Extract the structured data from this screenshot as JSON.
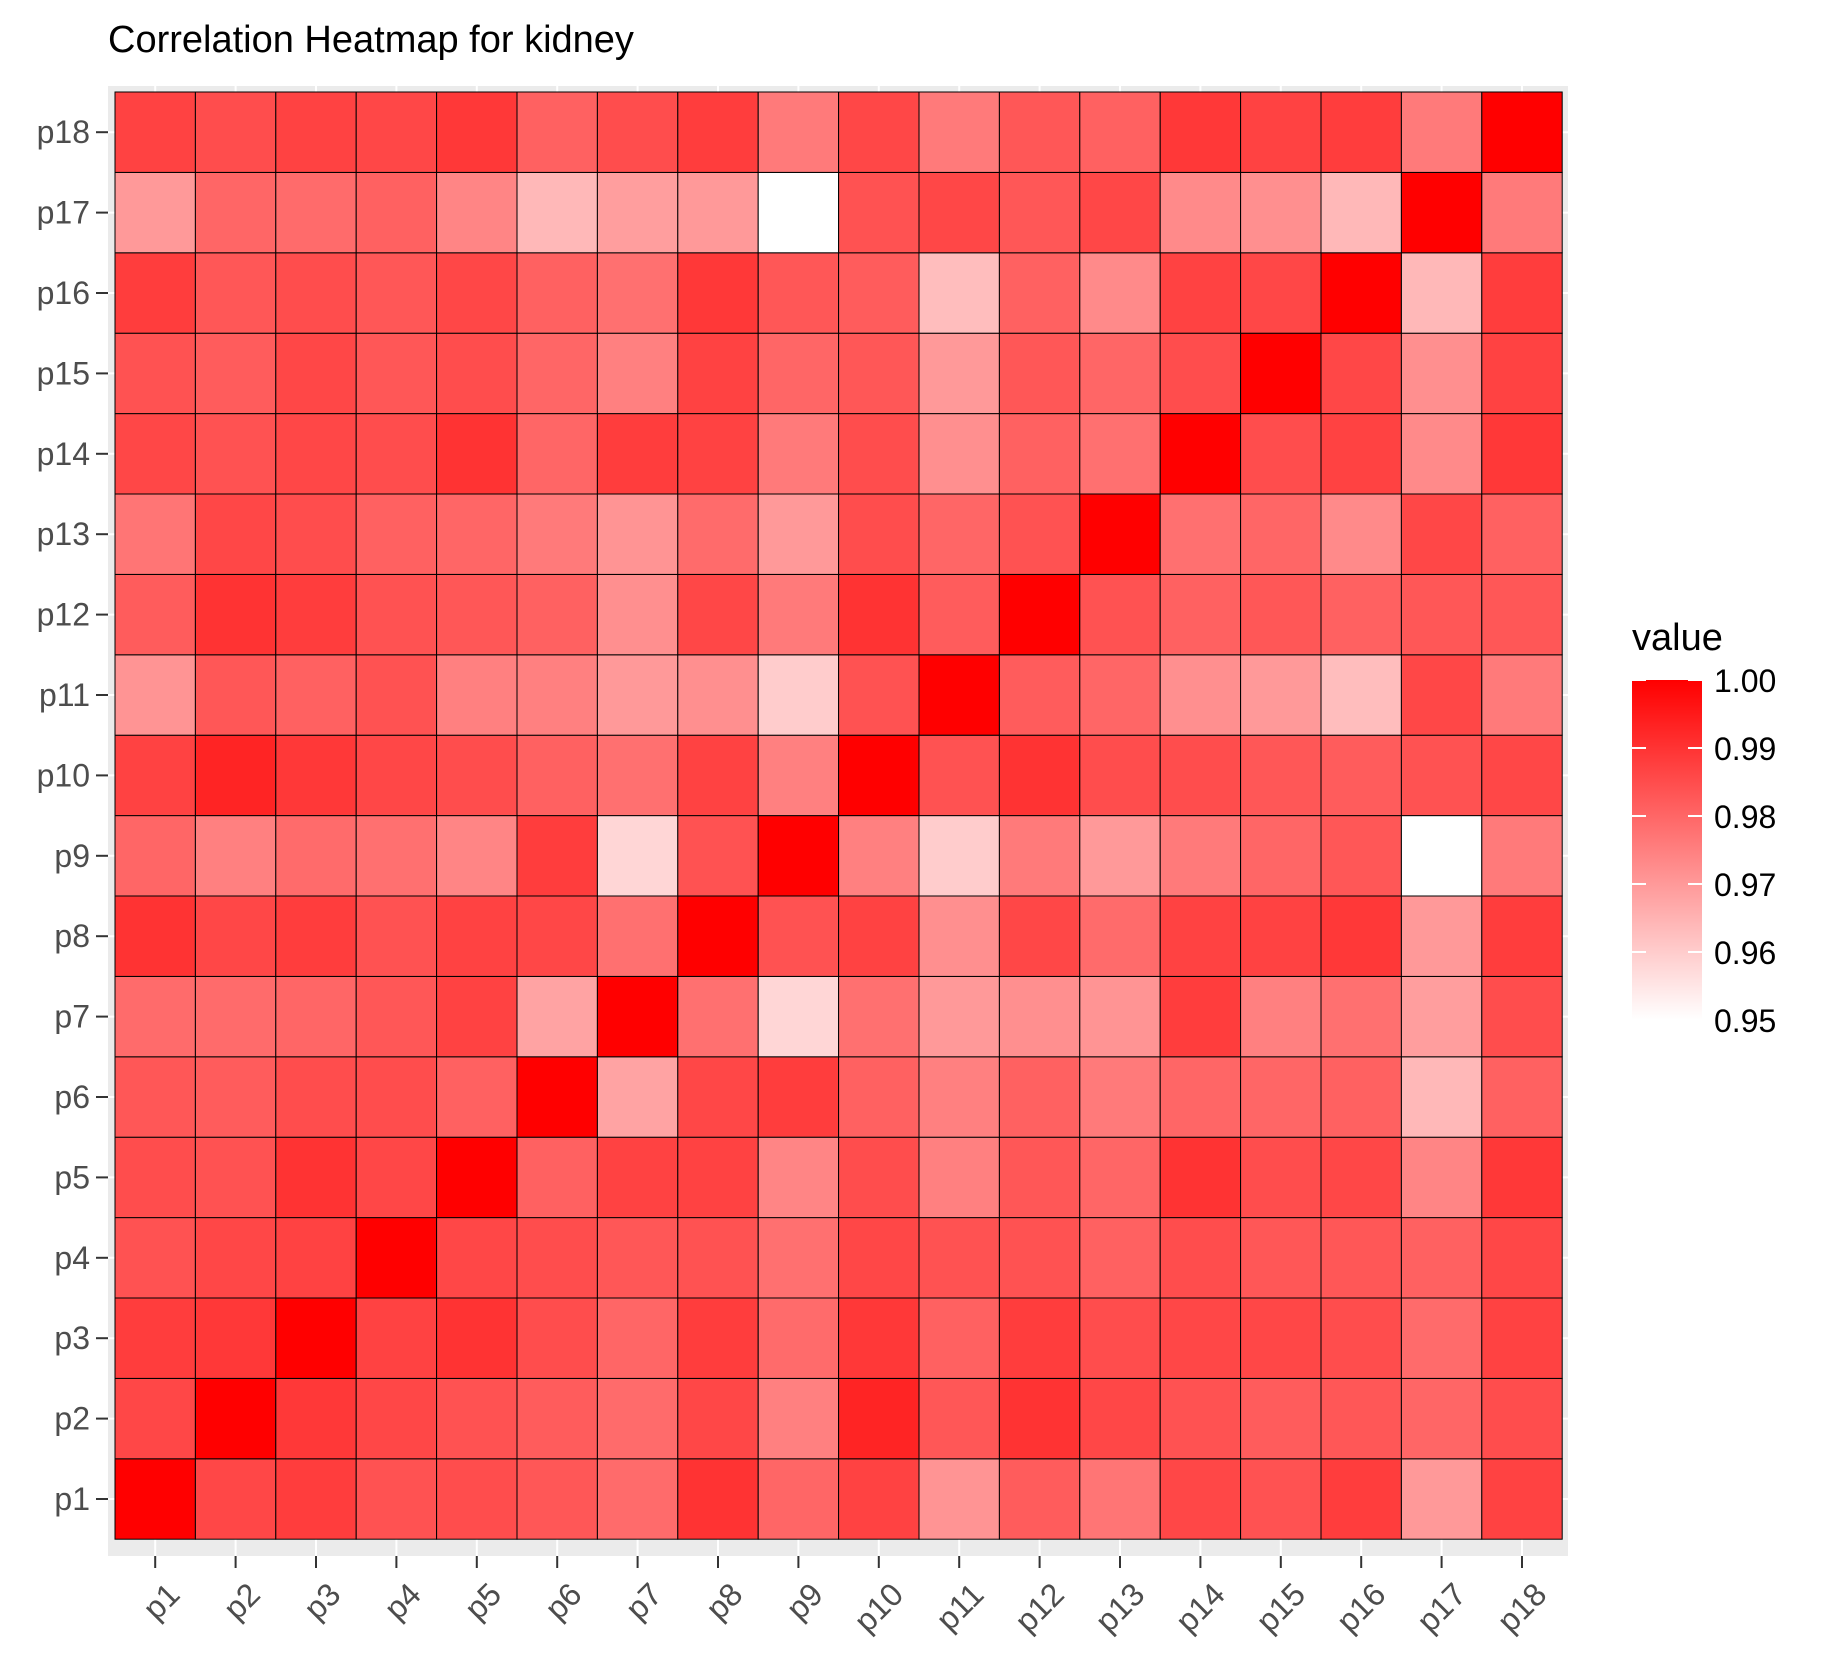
{
  "chart_data": {
    "type": "heatmap",
    "title": "Correlation Heatmap for kidney",
    "xlabel": "",
    "ylabel": "",
    "x_categories": [
      "p1",
      "p2",
      "p3",
      "p4",
      "p5",
      "p6",
      "p7",
      "p8",
      "p9",
      "p10",
      "p11",
      "p12",
      "p13",
      "p14",
      "p15",
      "p16",
      "p17",
      "p18"
    ],
    "y_categories": [
      "p1",
      "p2",
      "p3",
      "p4",
      "p5",
      "p6",
      "p7",
      "p8",
      "p9",
      "p10",
      "p11",
      "p12",
      "p13",
      "p14",
      "p15",
      "p16",
      "p17",
      "p18"
    ],
    "values": [
      [
        1.0,
        0.986,
        0.988,
        0.984,
        0.985,
        0.983,
        0.979,
        0.99,
        0.98,
        0.987,
        0.971,
        0.982,
        0.977,
        0.986,
        0.984,
        0.988,
        0.97,
        0.987
      ],
      [
        0.986,
        1.0,
        0.989,
        0.986,
        0.984,
        0.982,
        0.979,
        0.986,
        0.975,
        0.993,
        0.983,
        0.99,
        0.986,
        0.984,
        0.982,
        0.983,
        0.98,
        0.985
      ],
      [
        0.988,
        0.989,
        1.0,
        0.987,
        0.99,
        0.985,
        0.98,
        0.988,
        0.979,
        0.989,
        0.981,
        0.988,
        0.985,
        0.986,
        0.986,
        0.985,
        0.979,
        0.987
      ],
      [
        0.984,
        0.986,
        0.987,
        1.0,
        0.986,
        0.985,
        0.983,
        0.984,
        0.978,
        0.986,
        0.984,
        0.984,
        0.981,
        0.985,
        0.983,
        0.983,
        0.981,
        0.986
      ],
      [
        0.985,
        0.984,
        0.99,
        0.986,
        1.0,
        0.981,
        0.987,
        0.987,
        0.974,
        0.985,
        0.975,
        0.983,
        0.98,
        0.99,
        0.985,
        0.986,
        0.974,
        0.989
      ],
      [
        0.983,
        0.982,
        0.985,
        0.985,
        0.981,
        1.0,
        0.968,
        0.986,
        0.988,
        0.981,
        0.975,
        0.981,
        0.976,
        0.98,
        0.98,
        0.981,
        0.964,
        0.981
      ],
      [
        0.979,
        0.979,
        0.98,
        0.983,
        0.987,
        0.968,
        1.0,
        0.978,
        0.958,
        0.978,
        0.97,
        0.972,
        0.971,
        0.988,
        0.975,
        0.978,
        0.969,
        0.985
      ],
      [
        0.99,
        0.986,
        0.988,
        0.984,
        0.987,
        0.986,
        0.978,
        1.0,
        0.984,
        0.987,
        0.972,
        0.986,
        0.979,
        0.987,
        0.987,
        0.989,
        0.97,
        0.988
      ],
      [
        0.98,
        0.975,
        0.979,
        0.978,
        0.974,
        0.988,
        0.958,
        0.984,
        1.0,
        0.975,
        0.96,
        0.976,
        0.97,
        0.976,
        0.98,
        0.983,
        0.95,
        0.976
      ],
      [
        0.987,
        0.993,
        0.989,
        0.986,
        0.985,
        0.981,
        0.978,
        0.987,
        0.975,
        1.0,
        0.984,
        0.99,
        0.985,
        0.985,
        0.983,
        0.982,
        0.984,
        0.986
      ],
      [
        0.971,
        0.983,
        0.981,
        0.984,
        0.975,
        0.975,
        0.97,
        0.972,
        0.96,
        0.984,
        1.0,
        0.982,
        0.98,
        0.972,
        0.97,
        0.963,
        0.986,
        0.976
      ],
      [
        0.982,
        0.99,
        0.988,
        0.984,
        0.983,
        0.981,
        0.972,
        0.986,
        0.976,
        0.99,
        0.982,
        1.0,
        0.984,
        0.981,
        0.983,
        0.981,
        0.983,
        0.983
      ],
      [
        0.977,
        0.986,
        0.985,
        0.981,
        0.98,
        0.976,
        0.971,
        0.979,
        0.97,
        0.985,
        0.98,
        0.984,
        1.0,
        0.978,
        0.98,
        0.973,
        0.986,
        0.981
      ],
      [
        0.986,
        0.984,
        0.986,
        0.985,
        0.99,
        0.98,
        0.988,
        0.987,
        0.976,
        0.985,
        0.972,
        0.981,
        0.978,
        1.0,
        0.985,
        0.987,
        0.973,
        0.989
      ],
      [
        0.984,
        0.982,
        0.986,
        0.983,
        0.985,
        0.98,
        0.975,
        0.987,
        0.98,
        0.983,
        0.97,
        0.983,
        0.98,
        0.985,
        1.0,
        0.986,
        0.972,
        0.987
      ],
      [
        0.988,
        0.983,
        0.985,
        0.983,
        0.986,
        0.981,
        0.978,
        0.989,
        0.983,
        0.982,
        0.963,
        0.981,
        0.973,
        0.987,
        0.986,
        1.0,
        0.964,
        0.988
      ],
      [
        0.97,
        0.98,
        0.979,
        0.981,
        0.974,
        0.964,
        0.969,
        0.97,
        0.95,
        0.984,
        0.986,
        0.983,
        0.986,
        0.973,
        0.972,
        0.964,
        1.0,
        0.976
      ],
      [
        0.987,
        0.985,
        0.987,
        0.986,
        0.989,
        0.981,
        0.985,
        0.988,
        0.976,
        0.986,
        0.976,
        0.983,
        0.981,
        0.989,
        0.987,
        0.988,
        0.976,
        1.0
      ]
    ],
    "color_scale": {
      "low": "#ffffff",
      "high": "#ff0000",
      "limits": [
        0.95,
        1.0
      ]
    },
    "legend": {
      "title": "value",
      "breaks": [
        1.0,
        0.99,
        0.98,
        0.97,
        0.96,
        0.95
      ],
      "labels": [
        "1.00",
        "0.99",
        "0.98",
        "0.97",
        "0.96",
        "0.95"
      ],
      "position": "right"
    },
    "panel_background": "#ebebeb",
    "grid": true
  }
}
